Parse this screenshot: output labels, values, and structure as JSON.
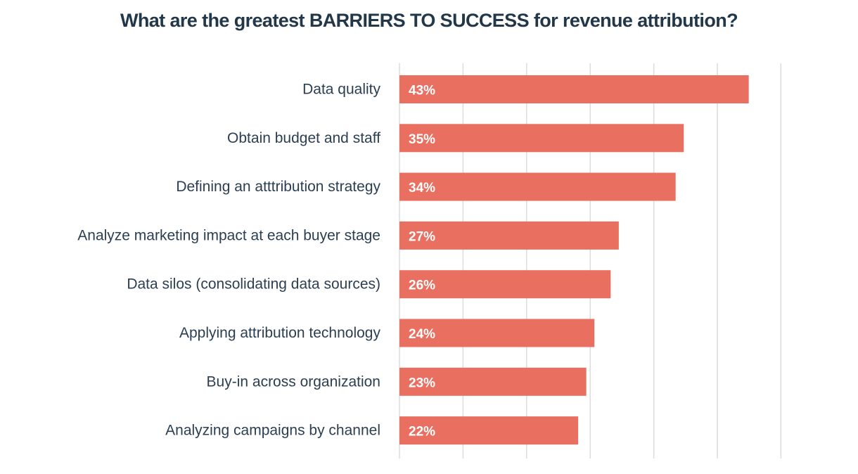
{
  "chart_data": {
    "type": "bar",
    "orientation": "horizontal",
    "title": "What are the greatest BARRIERS TO SUCCESS for revenue attribution?",
    "categories": [
      "Data quality",
      "Obtain budget and staff",
      "Defining an atttribution strategy",
      "Analyze marketing impact at each buyer stage",
      "Data silos (consolidating data sources)",
      "Applying attribution technology",
      "Buy-in across organization",
      "Analyzing campaigns by channel"
    ],
    "values": [
      43,
      35,
      34,
      27,
      26,
      24,
      23,
      22
    ],
    "data_labels": [
      "43%",
      "35%",
      "34%",
      "27%",
      "26%",
      "24%",
      "23%",
      "22%"
    ],
    "xlabel": "",
    "ylabel": "",
    "xlim": [
      0,
      48
    ],
    "grid": true,
    "legend": "none",
    "bar_color": "#e97060",
    "grid_color": "#dcdcdc",
    "label_color": "#2b3e52",
    "title_color": "#22384a"
  }
}
